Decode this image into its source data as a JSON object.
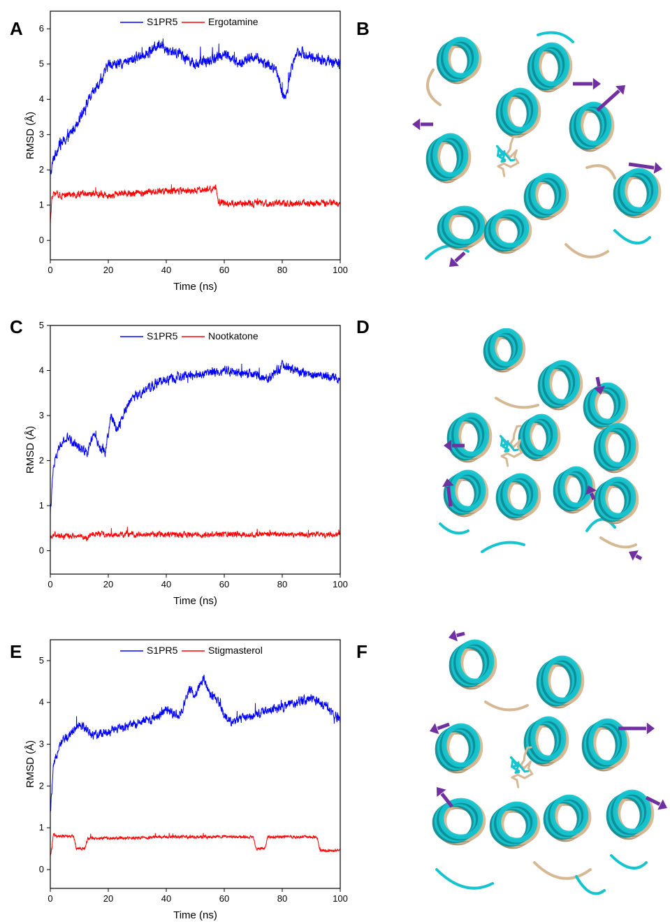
{
  "panels": {
    "A": "A",
    "B": "B",
    "C": "C",
    "D": "D",
    "E": "E",
    "F": "F"
  },
  "colors": {
    "protein": "#0000ff",
    "ligand": "#ff0000",
    "helix_cyan": "#16c4cf",
    "helix_tan": "#d6b994",
    "arrow": "#7030a0"
  },
  "chart_data": [
    {
      "type": "line",
      "panel": "A",
      "xlabel": "Time (ns)",
      "ylabel": "RMSD (Å)",
      "xlim": [
        0,
        100
      ],
      "ylim": [
        -0.55,
        6.5
      ],
      "xticks": [
        0,
        20,
        40,
        60,
        80,
        100
      ],
      "yticks": [
        0,
        1,
        2,
        3,
        4,
        5,
        6
      ],
      "legend": "top-center",
      "series": [
        {
          "name": "S1PR5",
          "color": "#0000ff",
          "noise": 0.22,
          "x": [
            0,
            1,
            3,
            6,
            9,
            12,
            15,
            18,
            20,
            25,
            30,
            35,
            38,
            40,
            45,
            50,
            55,
            60,
            65,
            70,
            75,
            78,
            80,
            81,
            83,
            85,
            90,
            95,
            100
          ],
          "y": [
            1.8,
            2.3,
            2.7,
            2.9,
            3.3,
            3.8,
            4.2,
            4.6,
            5.0,
            5.0,
            5.2,
            5.4,
            5.6,
            5.4,
            5.3,
            5.0,
            5.1,
            5.3,
            5.0,
            5.2,
            5.0,
            4.8,
            4.2,
            4.0,
            4.8,
            5.4,
            5.2,
            5.1,
            5.0
          ]
        },
        {
          "name": "Ergotamine",
          "color": "#ff0000",
          "noise": 0.14,
          "x": [
            0,
            0.5,
            1,
            10,
            20,
            30,
            40,
            50,
            55,
            57,
            58,
            60,
            70,
            80,
            90,
            100
          ],
          "y": [
            0.4,
            1.2,
            1.3,
            1.3,
            1.3,
            1.35,
            1.4,
            1.4,
            1.45,
            1.55,
            1.1,
            1.05,
            1.05,
            1.05,
            1.05,
            1.05
          ]
        }
      ]
    },
    {
      "type": "line",
      "panel": "C",
      "xlabel": "Time (ns)",
      "ylabel": "RMSD (Å)",
      "xlim": [
        0,
        100
      ],
      "ylim": [
        -0.52,
        5.0
      ],
      "xticks": [
        0,
        20,
        40,
        60,
        80,
        100
      ],
      "yticks": [
        0,
        1,
        2,
        3,
        4,
        5
      ],
      "legend": "top-center",
      "series": [
        {
          "name": "S1PR5",
          "color": "#0000ff",
          "noise": 0.15,
          "x": [
            0,
            1,
            3,
            6,
            10,
            13,
            15,
            17,
            19,
            21,
            23,
            25,
            28,
            32,
            36,
            40,
            50,
            60,
            70,
            75,
            80,
            85,
            90,
            95,
            100
          ],
          "y": [
            0.8,
            1.8,
            2.3,
            2.5,
            2.3,
            2.2,
            2.6,
            2.3,
            2.2,
            3.0,
            2.7,
            3.0,
            3.4,
            3.5,
            3.7,
            3.8,
            3.9,
            4.0,
            3.9,
            3.8,
            4.1,
            4.0,
            3.9,
            3.9,
            3.8
          ]
        },
        {
          "name": "Nootkatone",
          "color": "#ff0000",
          "noise": 0.09,
          "x": [
            0,
            1,
            5,
            10,
            13,
            14,
            20,
            40,
            60,
            80,
            100
          ],
          "y": [
            0.3,
            0.35,
            0.33,
            0.33,
            0.25,
            0.38,
            0.36,
            0.36,
            0.36,
            0.36,
            0.36
          ]
        }
      ]
    },
    {
      "type": "line",
      "panel": "E",
      "xlabel": "Time (ns)",
      "ylabel": "RMSD (Å)",
      "xlim": [
        0,
        100
      ],
      "ylim": [
        -0.45,
        5.5
      ],
      "xticks": [
        0,
        20,
        40,
        60,
        80,
        100
      ],
      "yticks": [
        0,
        1,
        2,
        3,
        4,
        5
      ],
      "legend": "top-center",
      "series": [
        {
          "name": "S1PR5",
          "color": "#0000ff",
          "noise": 0.16,
          "x": [
            0,
            1,
            3,
            6,
            10,
            15,
            20,
            25,
            30,
            35,
            40,
            45,
            48,
            50,
            53,
            55,
            58,
            60,
            63,
            65,
            70,
            75,
            80,
            85,
            90,
            95,
            100
          ],
          "y": [
            1.3,
            2.4,
            3.0,
            3.2,
            3.5,
            3.2,
            3.3,
            3.4,
            3.5,
            3.6,
            3.8,
            3.7,
            4.3,
            4.2,
            4.6,
            4.2,
            4.0,
            3.7,
            3.5,
            3.6,
            3.7,
            3.8,
            3.9,
            4.0,
            4.1,
            3.9,
            3.6
          ]
        },
        {
          "name": "Stigmasterol",
          "color": "#ff0000",
          "noise": 0.05,
          "x": [
            0,
            0.5,
            1,
            2,
            8,
            9,
            12,
            13,
            20,
            40,
            60,
            70,
            71,
            74,
            75,
            92,
            93,
            100
          ],
          "y": [
            0.3,
            0.5,
            0.85,
            0.8,
            0.8,
            0.5,
            0.5,
            0.75,
            0.75,
            0.78,
            0.78,
            0.78,
            0.5,
            0.5,
            0.78,
            0.78,
            0.45,
            0.45
          ]
        }
      ]
    }
  ]
}
